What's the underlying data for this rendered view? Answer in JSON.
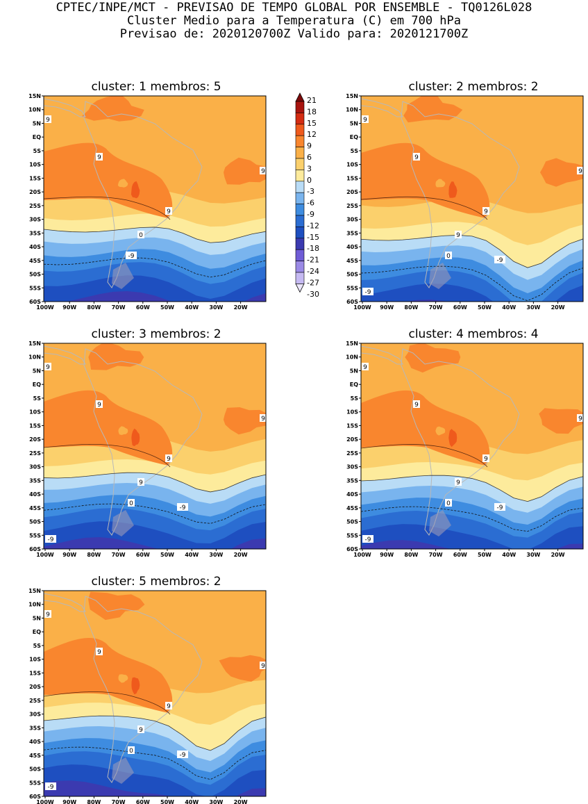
{
  "header": {
    "line1": "CPTEC/INPE/MCT - PREVISAO DE TEMPO GLOBAL POR ENSEMBLE - TQ0126L028",
    "line2": "Cluster Medio para a Temperatura (C) em 700 hPa",
    "line3": "Previsao de: 2020120700Z   Valido para: 2020121700Z"
  },
  "panels": [
    {
      "title": "cluster: 1   membros: 5",
      "contour_labels": [
        "9",
        "9",
        "9",
        "9",
        "0",
        "-9"
      ]
    },
    {
      "title": "cluster: 2   membros: 2",
      "contour_labels": [
        "9",
        "9",
        "9",
        "9",
        "9",
        "0",
        "-9",
        "-9"
      ]
    },
    {
      "title": "cluster: 3   membros: 2",
      "contour_labels": [
        "9",
        "9",
        "9",
        "9",
        "9",
        "0",
        "-9",
        "-9"
      ]
    },
    {
      "title": "cluster: 4   membros: 4",
      "contour_labels": [
        "9",
        "9",
        "9",
        "9",
        "9",
        "0",
        "-9",
        "-9"
      ]
    },
    {
      "title": "cluster: 5   membros: 2",
      "contour_labels": [
        "9",
        "9",
        "9",
        "9",
        "9",
        "0",
        "-9",
        "-9"
      ]
    }
  ],
  "lat_ticks": [
    "15N",
    "10N",
    "5N",
    "EQ",
    "5S",
    "10S",
    "15S",
    "20S",
    "25S",
    "30S",
    "35S",
    "40S",
    "45S",
    "50S",
    "55S",
    "60S"
  ],
  "lon_ticks": [
    "100W",
    "90W",
    "80W",
    "70W",
    "60W",
    "50W",
    "40W",
    "30W",
    "20W"
  ],
  "colorbar": {
    "labels": [
      "21",
      "18",
      "15",
      "12",
      "9",
      "6",
      "3",
      "0",
      "-3",
      "-6",
      "-9",
      "-12",
      "-15",
      "-18",
      "-21",
      "-24",
      "-27",
      "-30"
    ],
    "colors": [
      "#7b0a0a",
      "#a8140f",
      "#d42c12",
      "#ef5a1c",
      "#f9862e",
      "#fab048",
      "#fbd06c",
      "#fdeb9c",
      "#b9dcf6",
      "#79b4ee",
      "#3e8ce0",
      "#2b6dd2",
      "#1e4fc0",
      "#3b3ab0",
      "#6f5cd6",
      "#9b8ae6",
      "#c5b9f2",
      "#ebe6fb"
    ]
  },
  "chart_data": {
    "type": "heatmap",
    "variable": "Temperatura (C) em 700 hPa",
    "contour_interval": 3,
    "levels": [
      -30,
      -27,
      -24,
      -21,
      -18,
      -15,
      -12,
      -9,
      -6,
      -3,
      0,
      3,
      6,
      9,
      12,
      15,
      18,
      21
    ],
    "clusters": [
      {
        "cluster": 1,
        "membros": 5
      },
      {
        "cluster": 2,
        "membros": 2
      },
      {
        "cluster": 3,
        "membros": 2
      },
      {
        "cluster": 4,
        "membros": 4
      },
      {
        "cluster": 5,
        "membros": 2
      }
    ]
  }
}
